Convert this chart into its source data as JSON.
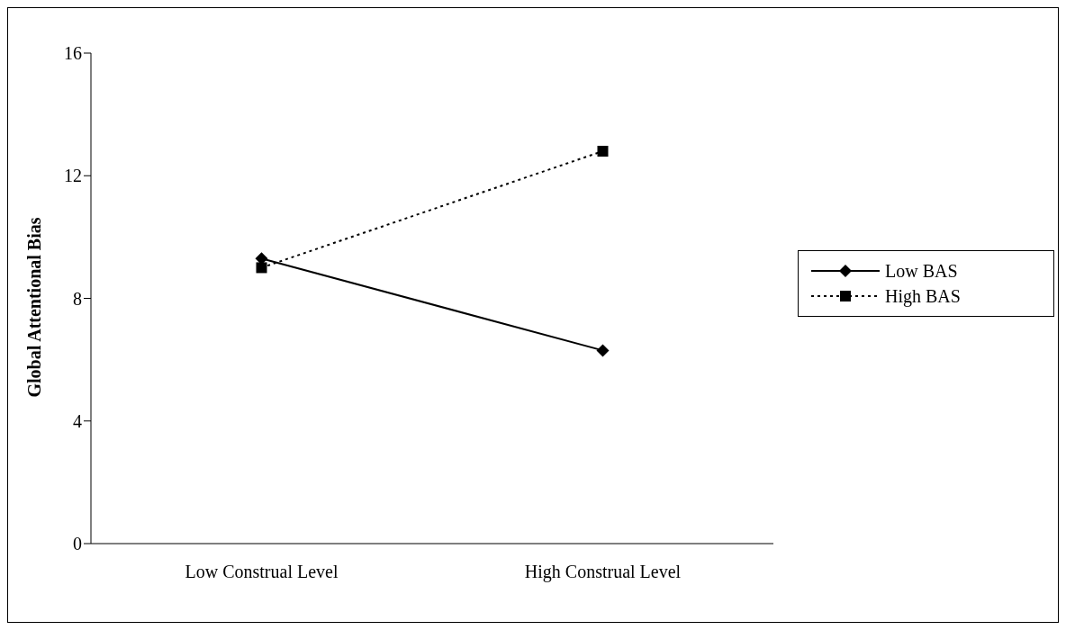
{
  "chart_data": {
    "type": "line",
    "ylabel": "Global Attentional Bias",
    "categories": [
      "Low Construal Level",
      "High Construal Level"
    ],
    "ylim": [
      0,
      16
    ],
    "yticks": [
      0,
      4,
      8,
      12,
      16
    ],
    "grid": false,
    "legend": "right",
    "series": [
      {
        "name": "Low BAS",
        "color": "#000000",
        "values": [
          9.3,
          6.3
        ],
        "marker": "diamond",
        "line_style": "solid"
      },
      {
        "name": "High BAS",
        "color": "#000000",
        "values": [
          9.0,
          12.8
        ],
        "marker": "square",
        "line_style": "dotted"
      }
    ]
  }
}
